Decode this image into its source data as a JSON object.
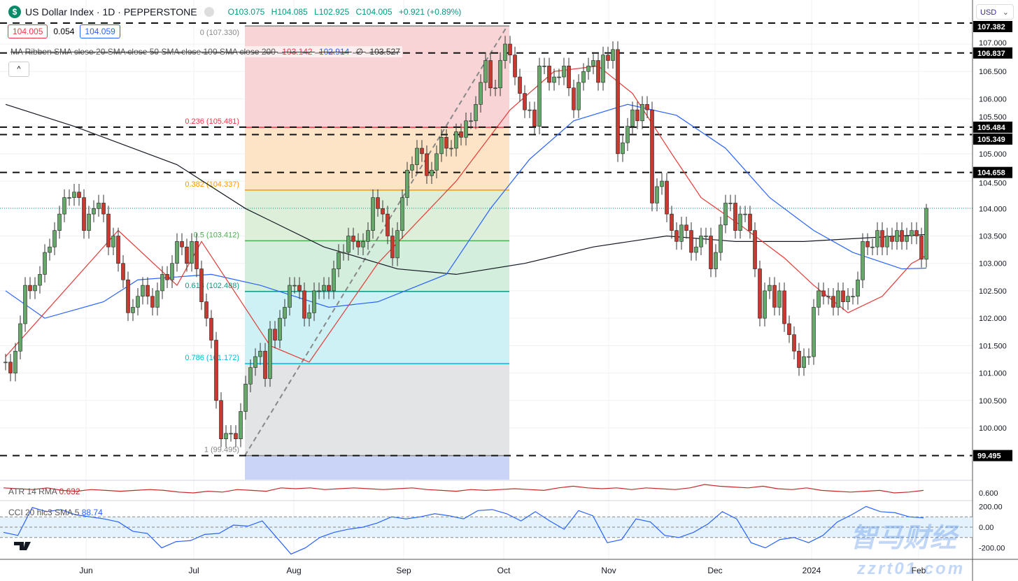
{
  "header": {
    "logo": "$",
    "title": "US Dollar Index · 1D · PEPPERSTONE",
    "open": "O103.075",
    "high": "H104.085",
    "low": "L102.925",
    "close": "C104.005",
    "change": "+0.921 (+0.89%)"
  },
  "quote_boxes": {
    "bid": "104.005",
    "spread": "0.054",
    "ask": "104.059"
  },
  "ma_legend": {
    "label": "MA Ribbon SMA close 20 SMA close 50 SMA close 100 SMA close 200",
    "v20": "103.142",
    "v50": "102.914",
    "v200": "103.527",
    "v100": "∅"
  },
  "collapse_icon": "^",
  "currency": "USD",
  "colors": {
    "up": "#089981",
    "down": "#f23645",
    "candle_up_fill": "#66a86a",
    "candle_down_fill": "#c8392f",
    "sma20": "#e53935",
    "sma50": "#2962ff",
    "sma200": "#131722"
  },
  "atr": {
    "label": "ATR 14 RMA",
    "value": "0.632",
    "axis": "0.600"
  },
  "cci": {
    "label": "CCI 20 hlc3 SMA 5",
    "value": "88.74",
    "axis": [
      "200.00",
      "0.00",
      "-200.00"
    ]
  },
  "watermark": {
    "top": "智马财经",
    "bottom": "zzrt01.com"
  },
  "chart_data": {
    "type": "candlestick",
    "ylim": [
      99.0,
      107.5
    ],
    "y_ticks": [
      "100.000",
      "100.500",
      "101.000",
      "101.500",
      "102.000",
      "102.500",
      "103.000",
      "103.500",
      "104.000",
      "104.500",
      "105.000",
      "105.500",
      "106.000",
      "106.500",
      "107.000"
    ],
    "x_ticks": [
      "Jun",
      "Jul",
      "Aug",
      "Sep",
      "Oct",
      "Nov",
      "Dec",
      "2024",
      "Feb"
    ],
    "last_bar": {
      "open": 103.075,
      "high": 104.085,
      "low": 102.925,
      "close": 104.005
    },
    "closes": [
      101.2,
      101.0,
      101.4,
      101.9,
      102.6,
      102.5,
      102.6,
      102.8,
      103.2,
      103.3,
      103.6,
      103.9,
      104.2,
      104.2,
      104.3,
      104.2,
      103.6,
      103.9,
      104.0,
      104.1,
      103.9,
      103.3,
      103.5,
      103.0,
      102.7,
      102.1,
      102.2,
      102.4,
      102.6,
      102.4,
      102.2,
      102.5,
      102.8,
      102.7,
      103.0,
      103.4,
      103.3,
      103.0,
      103.4,
      102.9,
      102.3,
      102.0,
      101.6,
      100.5,
      99.8,
      99.9,
      99.9,
      99.8,
      100.3,
      100.8,
      101.1,
      101.3,
      101.4,
      100.9,
      101.8,
      101.6,
      102.0,
      102.2,
      102.6,
      102.6,
      102.5,
      102.0,
      102.1,
      102.5,
      102.5,
      102.6,
      102.5,
      102.9,
      103.2,
      103.2,
      103.5,
      103.4,
      103.3,
      103.4,
      103.6,
      104.2,
      104.0,
      103.9,
      103.5,
      103.1,
      103.6,
      104.2,
      104.7,
      104.8,
      105.1,
      105.0,
      104.6,
      104.7,
      105.0,
      105.3,
      105.1,
      105.1,
      105.4,
      105.3,
      105.6,
      105.6,
      105.9,
      106.3,
      106.7,
      106.2,
      106.2,
      106.7,
      107.0,
      106.8,
      106.4,
      106.1,
      105.8,
      105.8,
      105.5,
      106.6,
      106.6,
      106.3,
      106.4,
      106.4,
      106.6,
      106.2,
      105.8,
      106.3,
      106.5,
      106.6,
      106.7,
      106.3,
      106.8,
      106.7,
      106.9,
      105.0,
      105.2,
      105.5,
      105.8,
      105.6,
      105.9,
      105.8,
      104.1,
      104.4,
      104.5,
      103.9,
      103.6,
      103.4,
      103.7,
      103.6,
      103.2,
      103.3,
      103.5,
      103.5,
      102.9,
      103.2,
      103.7,
      104.1,
      104.1,
      103.6,
      103.9,
      103.9,
      103.6,
      102.9,
      102.0,
      102.5,
      102.6,
      102.2,
      102.5,
      101.9,
      101.7,
      101.4,
      101.1,
      101.3,
      101.3,
      102.2,
      102.5,
      102.4,
      102.4,
      102.2,
      102.5,
      102.3,
      102.4,
      102.4,
      102.7,
      103.4,
      103.3,
      103.3,
      103.6,
      103.3,
      103.5,
      103.4,
      103.6,
      103.4,
      103.5,
      103.6,
      103.5,
      103.075,
      104.005
    ],
    "sma20": [
      [
        0,
        101.3
      ],
      [
        23,
        103.6
      ],
      [
        35,
        102.6
      ],
      [
        40,
        103.4
      ],
      [
        54,
        101.5
      ],
      [
        62,
        101.2
      ],
      [
        76,
        103.0
      ],
      [
        92,
        104.5
      ],
      [
        103,
        105.8
      ],
      [
        112,
        106.5
      ],
      [
        121,
        106.6
      ],
      [
        128,
        106.1
      ],
      [
        136,
        105.0
      ],
      [
        142,
        104.2
      ],
      [
        150,
        103.7
      ],
      [
        159,
        103.1
      ],
      [
        165,
        102.6
      ],
      [
        172,
        102.1
      ],
      [
        179,
        102.4
      ],
      [
        185,
        103.0
      ],
      [
        188,
        103.142
      ]
    ],
    "sma50": [
      [
        0,
        102.5
      ],
      [
        8,
        102.0
      ],
      [
        20,
        102.3
      ],
      [
        27,
        102.7
      ],
      [
        42,
        102.8
      ],
      [
        52,
        102.6
      ],
      [
        66,
        102.2
      ],
      [
        76,
        102.3
      ],
      [
        90,
        102.8
      ],
      [
        99,
        104.0
      ],
      [
        107,
        104.9
      ],
      [
        116,
        105.6
      ],
      [
        127,
        105.9
      ],
      [
        137,
        105.7
      ],
      [
        147,
        105.1
      ],
      [
        156,
        104.2
      ],
      [
        165,
        103.6
      ],
      [
        173,
        103.2
      ],
      [
        183,
        102.9
      ],
      [
        188,
        102.914
      ]
    ],
    "sma200": [
      [
        0,
        105.9
      ],
      [
        14,
        105.5
      ],
      [
        35,
        104.8
      ],
      [
        49,
        104.0
      ],
      [
        65,
        103.3
      ],
      [
        80,
        102.9
      ],
      [
        92,
        102.8
      ],
      [
        106,
        103.0
      ],
      [
        120,
        103.3
      ],
      [
        135,
        103.5
      ],
      [
        149,
        103.4
      ],
      [
        163,
        103.4
      ],
      [
        188,
        103.527
      ]
    ],
    "fibonacci": {
      "levels": [
        {
          "ratio": "0",
          "price": 107.33,
          "label": "0 (107.330)"
        },
        {
          "ratio": "0.236",
          "price": 105.481,
          "label": "0.236 (105.481)"
        },
        {
          "ratio": "0.382",
          "price": 104.337,
          "label": "0.382 (104.337)"
        },
        {
          "ratio": "0.5",
          "price": 103.412,
          "label": "0.5 (103.412)"
        },
        {
          "ratio": "0.618",
          "price": 102.488,
          "label": "0.618 (102.488)"
        },
        {
          "ratio": "0.786",
          "price": 101.172,
          "label": "0.786 (101.172)"
        },
        {
          "ratio": "1",
          "price": 99.495,
          "label": "1 (99.495)"
        }
      ],
      "zone_colors": [
        "#f9d4d7",
        "#fde4c6",
        "#ddefd8",
        "#d4eedd",
        "#cdf1f4",
        "#e3e4e6",
        "#c9d4f7"
      ],
      "line_colors": [
        "#888",
        "#f23645",
        "#ff9800",
        "#4caf50",
        "#089981",
        "#00bcd4",
        "#888"
      ]
    },
    "horizontal_levels": [
      {
        "price": 107.382,
        "label": "107.382"
      },
      {
        "price": 106.837,
        "label": "106.837"
      },
      {
        "price": 105.484,
        "label": "105.484"
      },
      {
        "price": 105.349,
        "label": "105.349"
      },
      {
        "price": 104.658,
        "label": "104.658"
      },
      {
        "price": 99.495,
        "label": "99.495"
      }
    ],
    "current_price": 104.005,
    "atr_values": [
      0.66,
      0.65,
      0.64,
      0.66,
      0.63,
      0.62,
      0.64,
      0.63,
      0.62,
      0.63,
      0.64,
      0.63,
      0.61,
      0.6,
      0.62,
      0.61,
      0.64,
      0.63,
      0.62,
      0.66,
      0.65,
      0.66,
      0.64,
      0.65,
      0.66,
      0.65,
      0.64,
      0.65,
      0.66,
      0.64,
      0.63,
      0.62,
      0.64,
      0.63,
      0.64,
      0.65,
      0.64,
      0.63,
      0.66,
      0.68,
      0.66,
      0.65,
      0.66,
      0.64,
      0.66,
      0.65,
      0.64,
      0.66,
      0.7,
      0.68,
      0.67,
      0.66,
      0.68,
      0.65,
      0.64,
      0.66,
      0.63,
      0.62,
      0.61,
      0.62,
      0.63,
      0.6,
      0.61,
      0.63
    ],
    "cci_values": [
      -50,
      -80,
      190,
      150,
      170,
      120,
      100,
      80,
      50,
      -40,
      -60,
      -200,
      -140,
      -130,
      -70,
      -60,
      20,
      10,
      60,
      -100,
      -260,
      -200,
      -100,
      -50,
      -20,
      0,
      40,
      100,
      80,
      100,
      130,
      110,
      80,
      160,
      170,
      130,
      60,
      150,
      60,
      -20,
      160,
      110,
      -150,
      -120,
      80,
      50,
      -80,
      -100,
      -50,
      30,
      150,
      80,
      -150,
      -200,
      -120,
      -100,
      -150,
      -80,
      50,
      120,
      200,
      150,
      140,
      100,
      90
    ]
  }
}
